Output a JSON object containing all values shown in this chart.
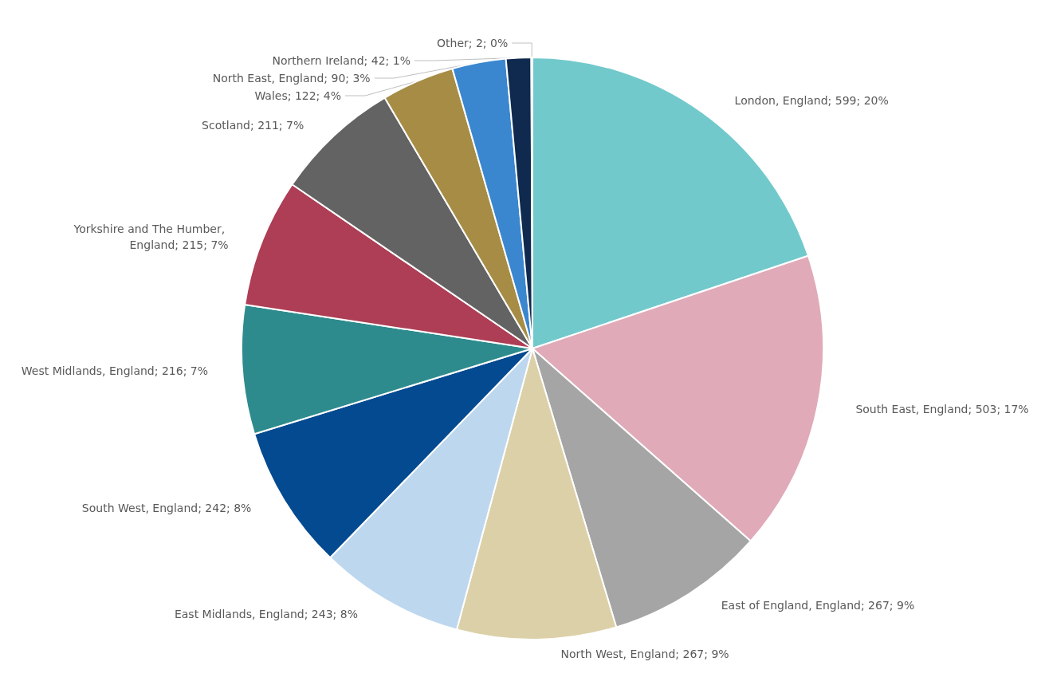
{
  "chart_data": {
    "type": "pie",
    "categories": [
      "London, England",
      "South East, England",
      "East of England, England",
      "North West, England",
      "East Midlands, England",
      "South West, England",
      "West Midlands, England",
      "Yorkshire and The Humber, England",
      "Scotland",
      "Wales",
      "North East, England",
      "Northern Ireland",
      "Other"
    ],
    "values": [
      599,
      503,
      267,
      267,
      243,
      242,
      216,
      215,
      211,
      122,
      90,
      42,
      2
    ],
    "value_labels": [
      "599; 20%",
      "503; 17%",
      "267; 9%",
      "267; 9%",
      "243; 8%",
      "242; 8%",
      "216; 7%",
      "215; 7%",
      "211; 7%",
      "122; 4%",
      "90; 3%",
      "42; 1%",
      "2; 0%"
    ],
    "colors": [
      "#72c9cc",
      "#e0aab8",
      "#a5a5a5",
      "#dcd0a8",
      "#bdd7ee",
      "#044a91",
      "#2e8b8d",
      "#ad3e55",
      "#636363",
      "#a68c45",
      "#3a87d0",
      "#0f2a4e",
      "#72c9cc"
    ],
    "legend": false
  }
}
